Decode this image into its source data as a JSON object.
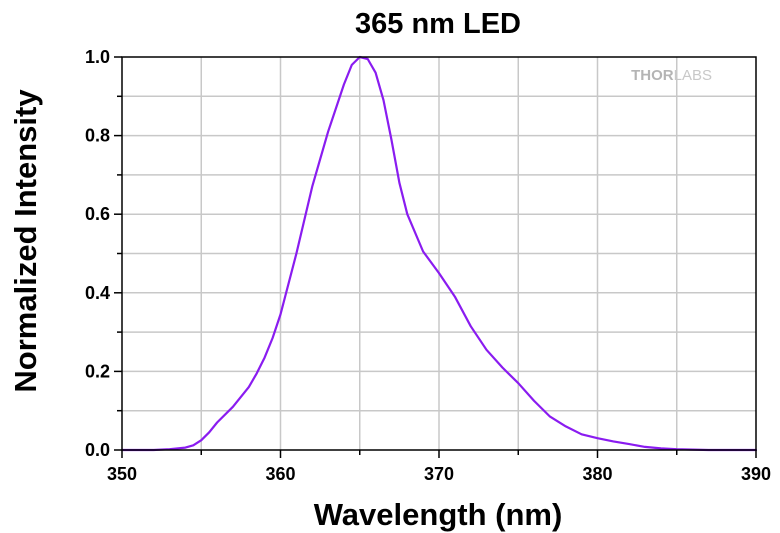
{
  "chart_data": {
    "type": "line",
    "title": "365 nm LED",
    "xlabel": "Wavelength (nm)",
    "ylabel": "Normalized Intensity",
    "xlim": [
      350,
      390
    ],
    "ylim": [
      0,
      1.0
    ],
    "x_ticks": [
      "350",
      "360",
      "370",
      "380",
      "390"
    ],
    "y_ticks": [
      "0.0",
      "0.2",
      "0.4",
      "0.6",
      "0.8",
      "1.0"
    ],
    "x_tick_values": [
      350,
      360,
      370,
      380,
      390
    ],
    "y_tick_values": [
      0,
      0.2,
      0.4,
      0.6,
      0.8,
      1.0
    ],
    "grid": true,
    "logo": "THORLABS",
    "series": [
      {
        "color": "#8a1cf0",
        "x": [
          350,
          352,
          353,
          354,
          354.5,
          355,
          355.5,
          356,
          357,
          358,
          358.5,
          359,
          359.5,
          360,
          361,
          362,
          363,
          364,
          364.5,
          365,
          365.5,
          366,
          366.5,
          367,
          367.5,
          368,
          369,
          370,
          371,
          372,
          373,
          374,
          375,
          376,
          377,
          378,
          379,
          380,
          381,
          382,
          383,
          384,
          385,
          386,
          387,
          388,
          389,
          390
        ],
        "y": [
          0.0,
          0.0,
          0.002,
          0.006,
          0.012,
          0.025,
          0.045,
          0.07,
          0.11,
          0.16,
          0.195,
          0.235,
          0.285,
          0.345,
          0.5,
          0.67,
          0.81,
          0.93,
          0.98,
          1.0,
          0.995,
          0.96,
          0.89,
          0.79,
          0.68,
          0.6,
          0.505,
          0.45,
          0.39,
          0.315,
          0.255,
          0.21,
          0.17,
          0.125,
          0.085,
          0.06,
          0.04,
          0.03,
          0.022,
          0.015,
          0.008,
          0.004,
          0.002,
          0.001,
          0.0,
          0.0,
          0.0,
          0.0
        ]
      }
    ]
  }
}
